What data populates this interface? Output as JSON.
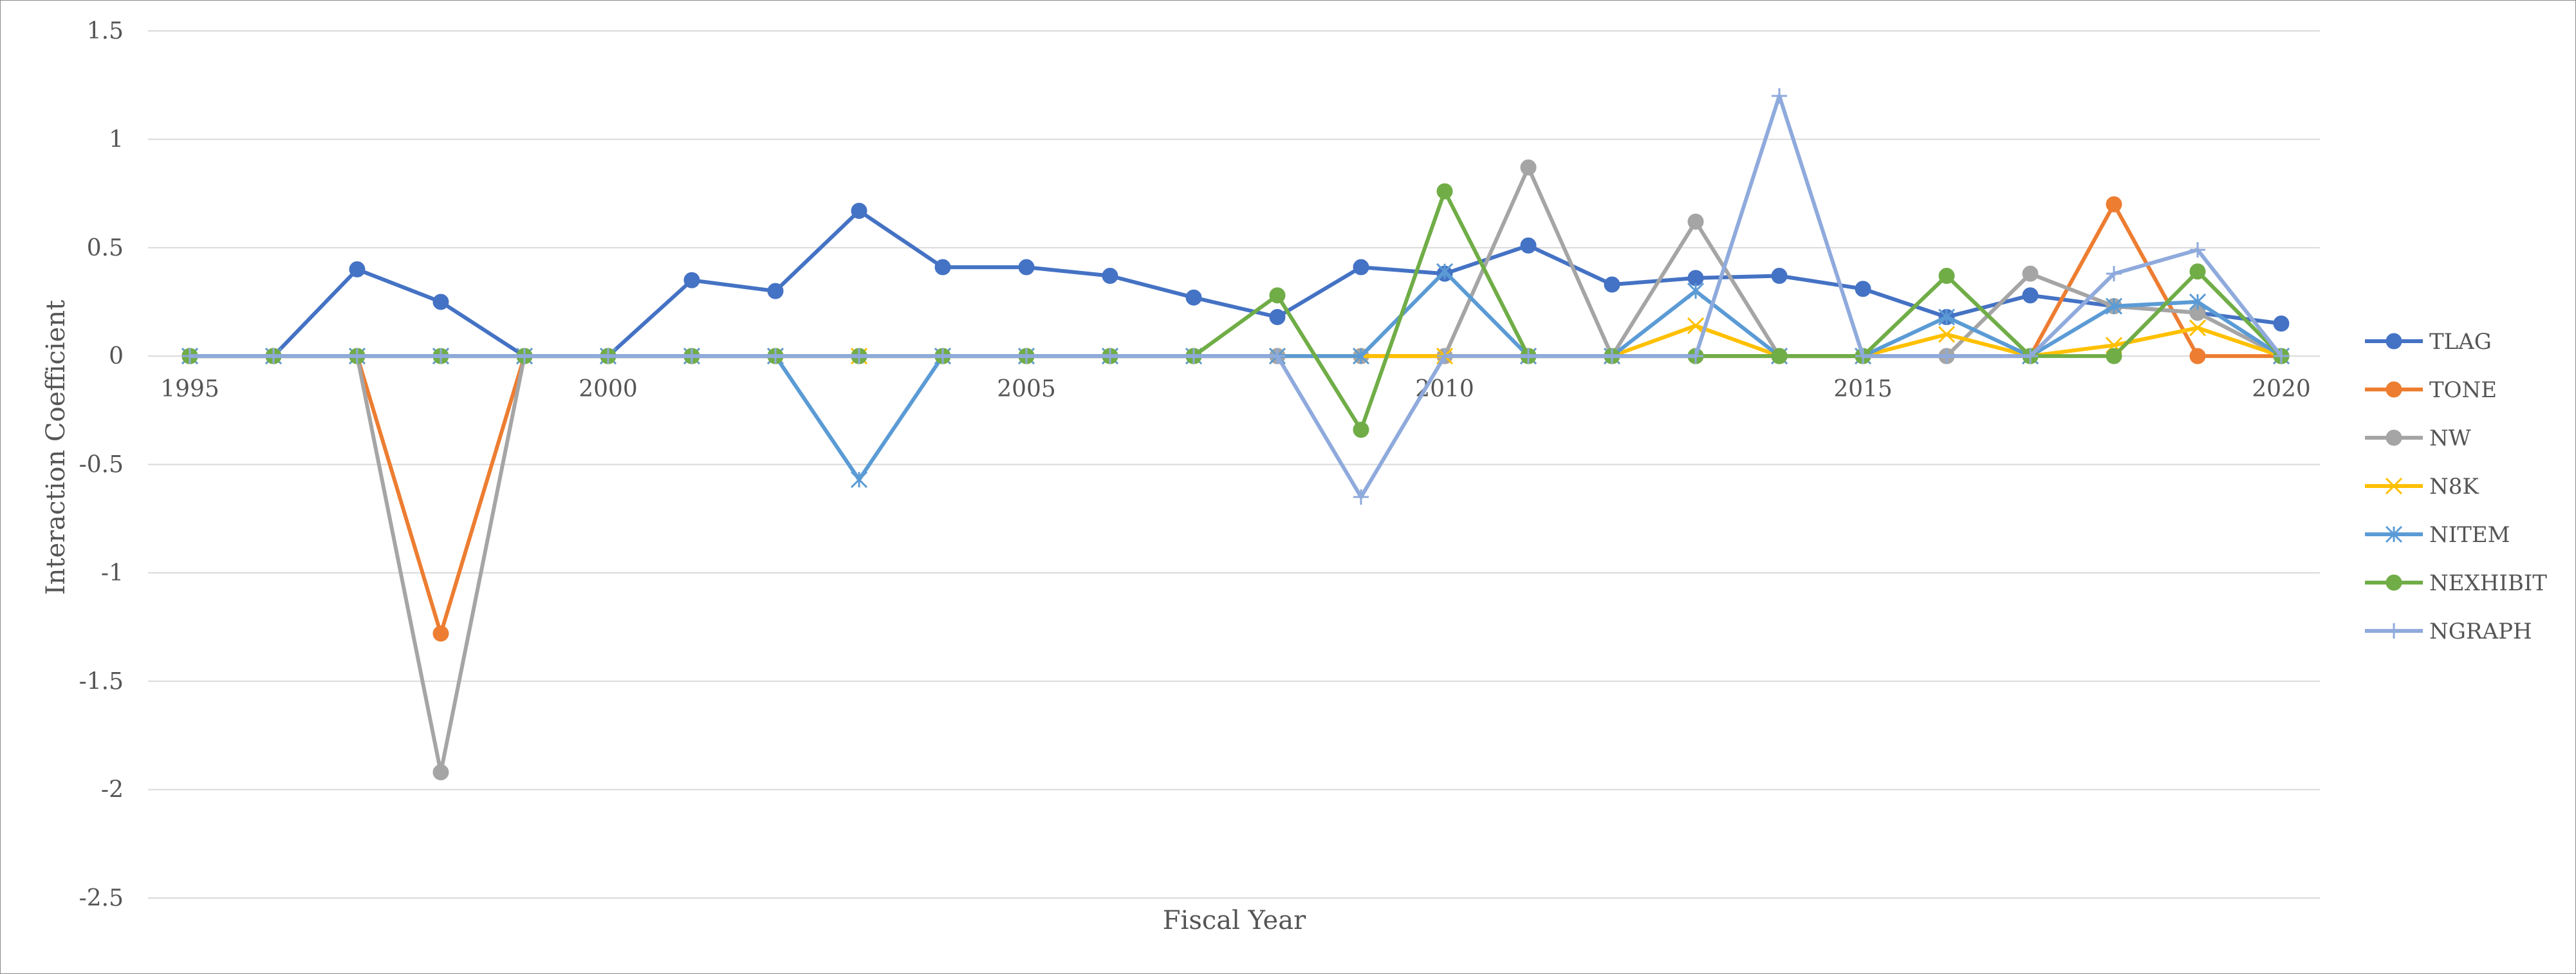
{
  "chart_data": {
    "type": "line",
    "xlabel": "Fiscal Year",
    "ylabel": "Interaction Coefficient",
    "ylim": [
      -2.5,
      1.5
    ],
    "xlim": [
      1995,
      2020
    ],
    "y_ticks": [
      "1.5",
      "1",
      "0.5",
      "0",
      "-0.5",
      "-1",
      "-1.5",
      "-2",
      "-2.5"
    ],
    "x_ticks": [
      "1995",
      "2000",
      "2005",
      "2010",
      "2015",
      "2020"
    ],
    "grid": "horizontal",
    "legend_position": "right",
    "x": [
      1995,
      1996,
      1997,
      1998,
      1999,
      2000,
      2001,
      2002,
      2003,
      2004,
      2005,
      2006,
      2007,
      2008,
      2009,
      2010,
      2011,
      2012,
      2013,
      2014,
      2015,
      2016,
      2017,
      2018,
      2019,
      2020
    ],
    "series": [
      {
        "name": "TLAG",
        "color": "#4472C4",
        "marker": "circle",
        "values": [
          0,
          0,
          0.4,
          0.25,
          0,
          0,
          0.35,
          0.3,
          0.67,
          0.41,
          0.41,
          0.37,
          0.27,
          0.18,
          0.41,
          0.38,
          0.51,
          0.33,
          0.36,
          0.37,
          0.31,
          0.18,
          0.28,
          0.23,
          0.2,
          0.15
        ]
      },
      {
        "name": "TONE",
        "color": "#ED7D31",
        "marker": "circle",
        "values": [
          0,
          0,
          0,
          -1.28,
          0,
          0,
          0,
          0,
          0,
          0,
          0,
          0,
          0,
          0,
          0,
          0,
          0,
          0,
          0,
          0,
          0,
          0,
          0,
          0.7,
          0,
          0
        ]
      },
      {
        "name": "NW",
        "color": "#A5A5A5",
        "marker": "circle",
        "values": [
          0,
          0,
          0,
          -1.92,
          0,
          0,
          0,
          0,
          0,
          0,
          0,
          0,
          0,
          0,
          0,
          0,
          0.87,
          0,
          0.62,
          0,
          0,
          0,
          0.38,
          0.23,
          0.2,
          0
        ]
      },
      {
        "name": "N8K",
        "color": "#FFC000",
        "marker": "x",
        "values": [
          0,
          0,
          0,
          0,
          0,
          0,
          0,
          0,
          0,
          0,
          0,
          0,
          0,
          0,
          0,
          0,
          0,
          0,
          0.14,
          0,
          0,
          0.1,
          0,
          0.05,
          0.13,
          0
        ]
      },
      {
        "name": "NITEM",
        "color": "#5B9BD5",
        "marker": "asterisk",
        "values": [
          0,
          0,
          0,
          0,
          0,
          0,
          0,
          0,
          -0.57,
          0,
          0,
          0,
          0,
          0,
          0,
          0.39,
          0,
          0,
          0.3,
          0,
          0,
          0.18,
          0,
          0.23,
          0.25,
          0
        ]
      },
      {
        "name": "NEXHIBIT",
        "color": "#70AD47",
        "marker": "circle",
        "values": [
          0,
          0,
          0,
          0,
          0,
          0,
          0,
          0,
          0,
          0,
          0,
          0,
          0,
          0.28,
          -0.34,
          0.76,
          0,
          0,
          0,
          0,
          0,
          0.37,
          0,
          0,
          0.39,
          0
        ]
      },
      {
        "name": "NGRAPH",
        "color": "#8FAADC",
        "marker": "plus",
        "values": [
          0,
          0,
          0,
          0,
          0,
          0,
          0,
          0,
          0,
          0,
          0,
          0,
          0,
          0,
          -0.65,
          0,
          0,
          0,
          0,
          1.2,
          0,
          0,
          0,
          0.38,
          0.49,
          0
        ]
      }
    ]
  }
}
